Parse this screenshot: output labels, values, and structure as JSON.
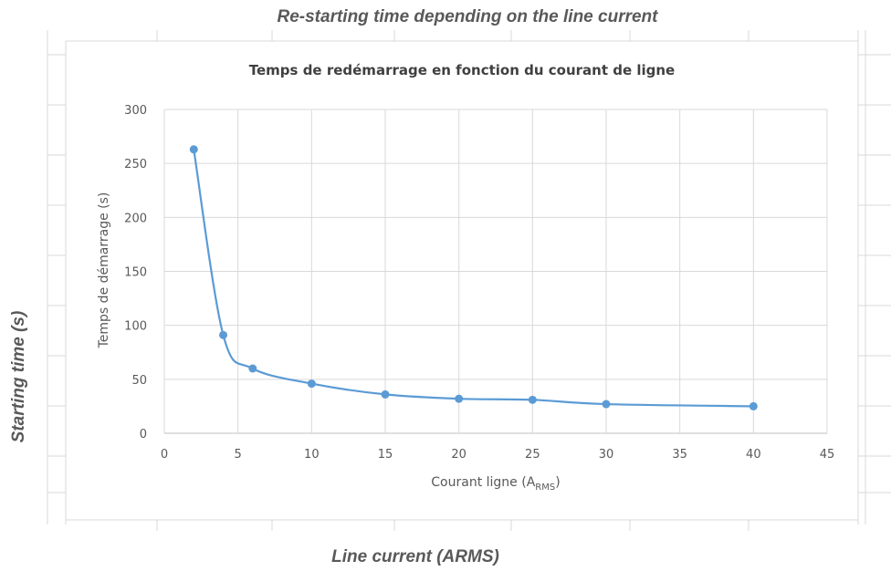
{
  "outer": {
    "title": "Re-starting time  depending on the line current",
    "xlabel": "Line current (ARMS)",
    "ylabel": "Starting time (s)"
  },
  "chart_data": {
    "type": "line",
    "title": "Temps de redémarrage en fonction du courant de ligne",
    "xlabel_main": "Courant ligne (A",
    "xlabel_sub": "RMS",
    "xlabel_end": ")",
    "ylabel": "Temps de démarrage (s)",
    "xlim": [
      0,
      45
    ],
    "ylim": [
      0,
      300
    ],
    "xticks": [
      0,
      5,
      10,
      15,
      20,
      25,
      30,
      35,
      40,
      45
    ],
    "yticks": [
      0,
      50,
      100,
      150,
      200,
      250,
      300
    ],
    "grid": true,
    "smooth": true,
    "series": [
      {
        "points": [
          [
            2,
            263
          ],
          [
            4,
            91
          ],
          [
            6,
            60
          ],
          [
            10,
            46
          ],
          [
            15,
            36
          ],
          [
            20,
            32
          ],
          [
            25,
            31
          ],
          [
            30,
            27
          ],
          [
            40,
            25
          ]
        ]
      }
    ],
    "colors": {
      "series": "#5b9bd5",
      "grid": "#d9d9d9",
      "axis": "#bfbfbf"
    }
  }
}
